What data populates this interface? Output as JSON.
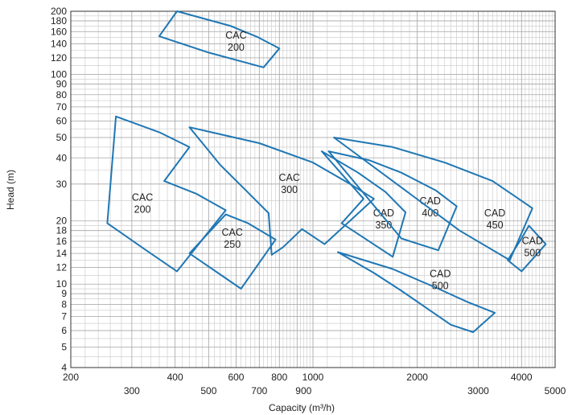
{
  "chart_data": {
    "type": "line",
    "title": "",
    "xlabel": "Capacity (m³/h)",
    "ylabel": "Head (m)",
    "x_scale": "log",
    "y_scale": "log",
    "xlim": [
      200,
      5000
    ],
    "ylim": [
      4,
      200
    ],
    "grid": true,
    "legend": "none",
    "series_color": "#1f77b4",
    "x_ticks": [
      200,
      300,
      400,
      500,
      600,
      700,
      800,
      900,
      1000,
      2000,
      3000,
      4000,
      5000
    ],
    "x_tick_labels": [
      "200",
      "300",
      "400",
      "500",
      "600",
      "700",
      "800",
      "900",
      "1000",
      "2000",
      "3000",
      "4000",
      "5000"
    ],
    "y_ticks": [
      4,
      5,
      6,
      7,
      8,
      9,
      10,
      12,
      14,
      16,
      18,
      20,
      30,
      40,
      50,
      60,
      70,
      80,
      90,
      100,
      120,
      140,
      160,
      180,
      200
    ],
    "y_tick_labels": [
      "4",
      "5",
      "6",
      "7",
      "8",
      "9",
      "10",
      "12",
      "14",
      "16",
      "18",
      "20",
      "30",
      "40",
      "50",
      "60",
      "70",
      "80",
      "90",
      "100",
      "120",
      "140",
      "160",
      "180",
      "200"
    ],
    "regions": [
      {
        "label": [
          "CAC",
          "200"
        ],
        "label_at": [
          600,
          148
        ],
        "points": [
          [
            405,
            200
          ],
          [
            580,
            170
          ],
          [
            690,
            151
          ],
          [
            800,
            133
          ],
          [
            720,
            108
          ],
          [
            500,
            127
          ],
          [
            360,
            152
          ]
        ]
      },
      {
        "label": [
          "CAC",
          "200"
        ],
        "label_at": [
          322,
          25
        ],
        "points": [
          [
            270,
            63
          ],
          [
            360,
            53
          ],
          [
            440,
            45
          ],
          [
            372,
            31
          ],
          [
            460,
            27
          ],
          [
            560,
            22.5
          ],
          [
            405,
            11.5
          ],
          [
            330,
            14.5
          ],
          [
            255,
            19.5
          ]
        ]
      },
      {
        "label": [
          "CAC",
          "300"
        ],
        "label_at": [
          855,
          31
        ],
        "points": [
          [
            440,
            56
          ],
          [
            700,
            47
          ],
          [
            1000,
            38
          ],
          [
            1280,
            30
          ],
          [
            1500,
            25.5
          ],
          [
            1080,
            15.5
          ],
          [
            930,
            18.3
          ],
          [
            820,
            15
          ],
          [
            760,
            13.8
          ],
          [
            745,
            21.8
          ],
          [
            640,
            28
          ],
          [
            540,
            37
          ]
        ]
      },
      {
        "label": [
          "CAC",
          "250"
        ],
        "label_at": [
          585,
          17
        ],
        "points": [
          [
            560,
            21.5
          ],
          [
            650,
            19.5
          ],
          [
            780,
            16.3
          ],
          [
            620,
            9.5
          ],
          [
            440,
            14
          ]
        ]
      },
      {
        "label": [
          "CAD",
          "350"
        ],
        "label_at": [
          1600,
          21
        ],
        "points": [
          [
            1060,
            43
          ],
          [
            1350,
            34
          ],
          [
            1620,
            27.5
          ],
          [
            1850,
            22
          ],
          [
            1700,
            13.5
          ],
          [
            1210,
            19.5
          ],
          [
            1400,
            25.5
          ]
        ]
      },
      {
        "label": [
          "CAD",
          "400"
        ],
        "label_at": [
          2180,
          24
        ],
        "points": [
          [
            1110,
            43
          ],
          [
            1450,
            39
          ],
          [
            1800,
            34
          ],
          [
            2260,
            28
          ],
          [
            2600,
            23.5
          ],
          [
            2300,
            14.5
          ],
          [
            1800,
            16.5
          ]
        ]
      },
      {
        "label": [
          "CAD",
          "450"
        ],
        "label_at": [
          3350,
          21
        ],
        "points": [
          [
            1150,
            50
          ],
          [
            1700,
            45
          ],
          [
            2400,
            38
          ],
          [
            3300,
            31
          ],
          [
            4300,
            23
          ],
          [
            3700,
            13
          ],
          [
            2650,
            18
          ]
        ]
      },
      {
        "label": [
          "CAD",
          "500"
        ],
        "label_at": [
          4300,
          15.5
        ],
        "points": [
          [
            4200,
            19
          ],
          [
            4700,
            15.5
          ],
          [
            4000,
            11.5
          ],
          [
            3650,
            13
          ],
          [
            4000,
            16.5
          ]
        ]
      },
      {
        "label": [
          "CAD",
          "500"
        ],
        "label_at": [
          2330,
          10.8
        ],
        "points": [
          [
            1180,
            14.2
          ],
          [
            1700,
            11.8
          ],
          [
            2300,
            9.5
          ],
          [
            2800,
            8.2
          ],
          [
            3350,
            7.3
          ],
          [
            2900,
            5.9
          ],
          [
            2500,
            6.4
          ],
          [
            1800,
            9.3
          ],
          [
            1500,
            11.3
          ]
        ]
      }
    ]
  }
}
